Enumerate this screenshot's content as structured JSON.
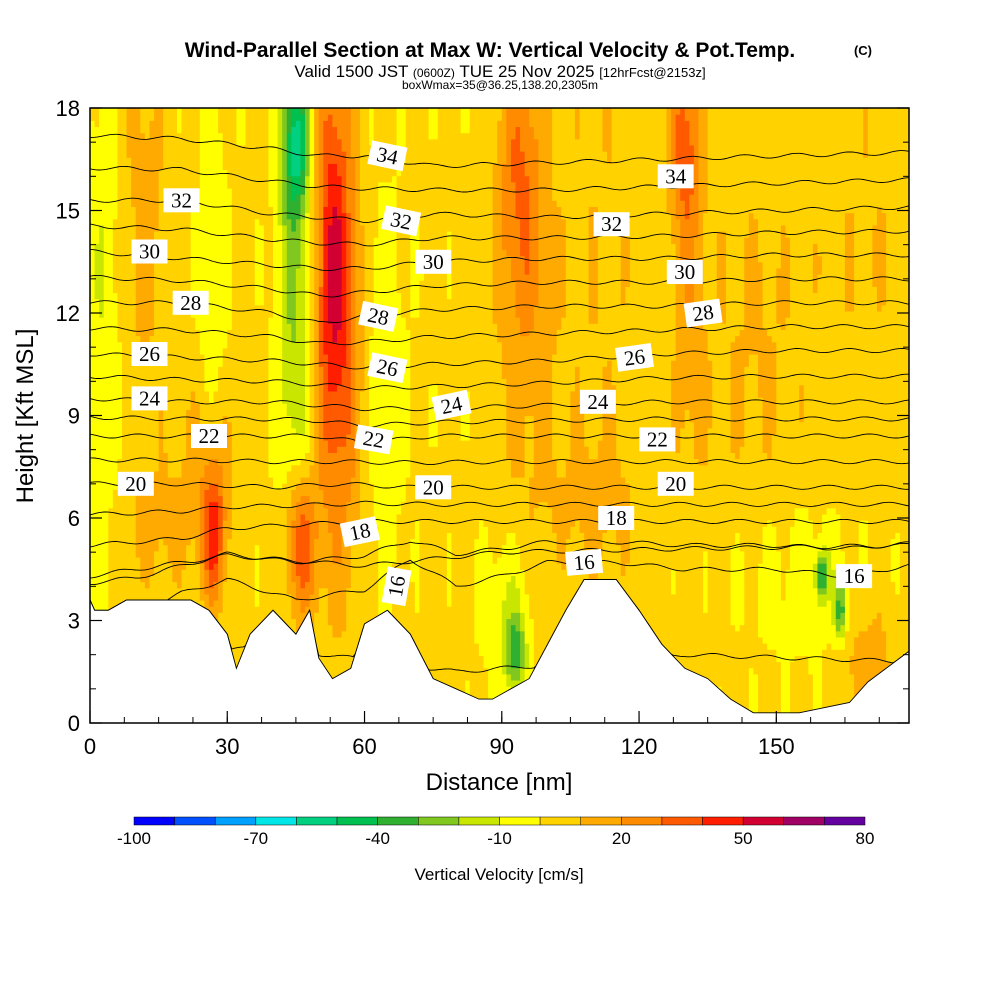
{
  "chart_data": {
    "type": "heatmap",
    "title": "Wind-Parallel Section at Max W: Vertical Velocity & Pot.Temp.",
    "title_mark": "(C)",
    "subtitle_prefix": "Valid 1500 JST",
    "subtitle_z": "(0600Z)",
    "subtitle_date": "TUE 25 Nov 2025",
    "subtitle_fcst": "[12hrFcst@2153z]",
    "subtitle2": "boxWmax=35@36.25,138.20,2305m",
    "xlabel": "Distance [nm]",
    "ylabel": "Height [Kft MSL]",
    "xlim": [
      0,
      179
    ],
    "ylim": [
      0,
      18
    ],
    "x_ticks": [
      0,
      30,
      60,
      90,
      120,
      150
    ],
    "y_ticks": [
      0,
      3,
      6,
      9,
      12,
      15,
      18
    ],
    "colorbar": {
      "label": "Vertical Velocity [cm/s]",
      "tick_values": [
        -100,
        -70,
        -40,
        -10,
        20,
        50,
        80
      ],
      "boundaries": [
        -100,
        -90,
        -80,
        -70,
        -60,
        -50,
        -40,
        -30,
        -20,
        -10,
        0,
        10,
        20,
        30,
        40,
        50,
        60,
        70,
        80
      ],
      "colors": [
        "#0000ff",
        "#0050ff",
        "#00a0ff",
        "#00e6e6",
        "#00d080",
        "#00c050",
        "#30b030",
        "#80c820",
        "#c8e600",
        "#ffff00",
        "#ffd200",
        "#ffaa00",
        "#ff8c00",
        "#ff5a00",
        "#ff1e00",
        "#d20032",
        "#a00064",
        "#6400a0"
      ]
    },
    "terrain_kft": [
      [
        0,
        3.6
      ],
      [
        1,
        3.3
      ],
      [
        4,
        3.3
      ],
      [
        8,
        3.6
      ],
      [
        22,
        3.6
      ],
      [
        26,
        3.3
      ],
      [
        30,
        2.6
      ],
      [
        32,
        1.6
      ],
      [
        35,
        2.6
      ],
      [
        40,
        3.3
      ],
      [
        45,
        2.6
      ],
      [
        48,
        3.3
      ],
      [
        50,
        1.9
      ],
      [
        53,
        1.3
      ],
      [
        57,
        1.6
      ],
      [
        60,
        2.9
      ],
      [
        65,
        3.3
      ],
      [
        70,
        2.6
      ],
      [
        75,
        1.3
      ],
      [
        80,
        1.0
      ],
      [
        85,
        0.7
      ],
      [
        88,
        0.7
      ],
      [
        92,
        1.0
      ],
      [
        96,
        1.3
      ],
      [
        100,
        2.3
      ],
      [
        104,
        3.3
      ],
      [
        108,
        4.2
      ],
      [
        115,
        4.2
      ],
      [
        120,
        3.3
      ],
      [
        125,
        2.3
      ],
      [
        130,
        1.6
      ],
      [
        135,
        1.3
      ],
      [
        140,
        0.7
      ],
      [
        145,
        0.3
      ],
      [
        155,
        0.3
      ],
      [
        166,
        0.6
      ],
      [
        170,
        1.2
      ],
      [
        179,
        2.1
      ]
    ],
    "series": [
      {
        "name": "16",
        "values": [
          [
            0,
            3.0
          ],
          [
            10,
            3.2
          ],
          [
            20,
            3.8
          ],
          [
            30,
            4.2
          ],
          [
            45,
            3.6
          ],
          [
            60,
            3.9
          ],
          [
            70,
            4.8
          ],
          [
            80,
            4.0
          ],
          [
            90,
            4.3
          ],
          [
            100,
            4.7
          ],
          [
            115,
            4.7
          ],
          [
            130,
            4.5
          ],
          [
            150,
            4.5
          ],
          [
            165,
            4.3
          ],
          [
            179,
            4.6
          ]
        ]
      },
      {
        "name": "18",
        "values": [
          [
            0,
            5.2
          ],
          [
            10,
            5.3
          ],
          [
            20,
            5.4
          ],
          [
            30,
            5.7
          ],
          [
            45,
            5.8
          ],
          [
            60,
            5.9
          ],
          [
            75,
            5.9
          ],
          [
            90,
            5.9
          ],
          [
            110,
            5.9
          ],
          [
            130,
            5.9
          ],
          [
            150,
            5.9
          ],
          [
            179,
            5.9
          ]
        ]
      },
      {
        "name": "20",
        "values": [
          [
            0,
            7.0
          ],
          [
            20,
            7.0
          ],
          [
            40,
            6.9
          ],
          [
            55,
            7.0
          ],
          [
            70,
            6.9
          ],
          [
            90,
            6.9
          ],
          [
            110,
            6.9
          ],
          [
            130,
            6.9
          ],
          [
            150,
            6.9
          ],
          [
            179,
            6.9
          ]
        ]
      },
      {
        "name": "22",
        "values": [
          [
            0,
            8.4
          ],
          [
            20,
            8.4
          ],
          [
            40,
            8.4
          ],
          [
            50,
            8.4
          ],
          [
            60,
            8.2
          ],
          [
            75,
            8.4
          ],
          [
            100,
            8.4
          ],
          [
            125,
            8.4
          ],
          [
            150,
            8.4
          ],
          [
            179,
            8.4
          ]
        ]
      },
      {
        "name": "24",
        "values": [
          [
            0,
            9.5
          ],
          [
            20,
            9.4
          ],
          [
            40,
            9.4
          ],
          [
            50,
            9.3
          ],
          [
            60,
            9.2
          ],
          [
            75,
            9.2
          ],
          [
            100,
            9.3
          ],
          [
            125,
            9.4
          ],
          [
            150,
            9.4
          ],
          [
            179,
            9.4
          ]
        ]
      },
      {
        "name": "26",
        "values": [
          [
            0,
            10.8
          ],
          [
            20,
            10.7
          ],
          [
            40,
            10.6
          ],
          [
            50,
            10.5
          ],
          [
            60,
            10.4
          ],
          [
            75,
            10.5
          ],
          [
            100,
            10.6
          ],
          [
            125,
            10.8
          ],
          [
            150,
            10.9
          ],
          [
            179,
            10.9
          ]
        ]
      },
      {
        "name": "28",
        "values": [
          [
            0,
            12.3
          ],
          [
            20,
            12.3
          ],
          [
            40,
            12.0
          ],
          [
            50,
            11.7
          ],
          [
            60,
            11.9
          ],
          [
            75,
            12.1
          ],
          [
            100,
            12.2
          ],
          [
            125,
            12.2
          ],
          [
            150,
            12.3
          ],
          [
            179,
            12.3
          ]
        ]
      },
      {
        "name": "30",
        "values": [
          [
            0,
            13.8
          ],
          [
            20,
            13.6
          ],
          [
            40,
            13.4
          ],
          [
            50,
            13.3
          ],
          [
            60,
            13.3
          ],
          [
            75,
            13.5
          ],
          [
            100,
            13.6
          ],
          [
            125,
            13.6
          ],
          [
            150,
            13.7
          ],
          [
            179,
            13.7
          ]
        ]
      },
      {
        "name": "32",
        "values": [
          [
            0,
            15.3
          ],
          [
            20,
            15.3
          ],
          [
            40,
            14.9
          ],
          [
            50,
            14.8
          ],
          [
            60,
            14.7
          ],
          [
            75,
            14.9
          ],
          [
            100,
            14.8
          ],
          [
            125,
            14.9
          ],
          [
            150,
            15.0
          ],
          [
            179,
            15.1
          ]
        ]
      },
      {
        "name": "34",
        "values": [
          [
            0,
            17.2
          ],
          [
            20,
            17.1
          ],
          [
            40,
            16.8
          ],
          [
            50,
            16.6
          ],
          [
            60,
            16.6
          ],
          [
            75,
            16.3
          ],
          [
            100,
            16.4
          ],
          [
            125,
            16.5
          ],
          [
            150,
            16.6
          ],
          [
            179,
            16.7
          ]
        ]
      }
    ],
    "contour_labels": [
      {
        "text": "32",
        "x": 20,
        "y": 15.3,
        "rot": 0
      },
      {
        "text": "30",
        "x": 13,
        "y": 13.8,
        "rot": 0
      },
      {
        "text": "28",
        "x": 22,
        "y": 12.3,
        "rot": 0
      },
      {
        "text": "26",
        "x": 13,
        "y": 10.8,
        "rot": 0
      },
      {
        "text": "24",
        "x": 13,
        "y": 9.5,
        "rot": 0
      },
      {
        "text": "22",
        "x": 26,
        "y": 8.4,
        "rot": 0
      },
      {
        "text": "20",
        "x": 10,
        "y": 7.0,
        "rot": 0
      },
      {
        "text": "34",
        "x": 65,
        "y": 16.6,
        "rot": 12
      },
      {
        "text": "32",
        "x": 68,
        "y": 14.7,
        "rot": 12
      },
      {
        "text": "30",
        "x": 75,
        "y": 13.5,
        "rot": 0
      },
      {
        "text": "28",
        "x": 63,
        "y": 11.9,
        "rot": 12
      },
      {
        "text": "26",
        "x": 65,
        "y": 10.4,
        "rot": 12
      },
      {
        "text": "24",
        "x": 79,
        "y": 9.3,
        "rot": -12
      },
      {
        "text": "22",
        "x": 62,
        "y": 8.3,
        "rot": 10
      },
      {
        "text": "20",
        "x": 75,
        "y": 6.9,
        "rot": 0
      },
      {
        "text": "18",
        "x": 59,
        "y": 5.6,
        "rot": -12
      },
      {
        "text": "16",
        "x": 67,
        "y": 4.0,
        "rot": -80
      },
      {
        "text": "34",
        "x": 128,
        "y": 16.0,
        "rot": 0
      },
      {
        "text": "32",
        "x": 114,
        "y": 14.6,
        "rot": 0
      },
      {
        "text": "30",
        "x": 130,
        "y": 13.2,
        "rot": 0
      },
      {
        "text": "28",
        "x": 134,
        "y": 12.0,
        "rot": -8
      },
      {
        "text": "26",
        "x": 119,
        "y": 10.7,
        "rot": -8
      },
      {
        "text": "24",
        "x": 111,
        "y": 9.4,
        "rot": 0
      },
      {
        "text": "22",
        "x": 124,
        "y": 8.3,
        "rot": 0
      },
      {
        "text": "20",
        "x": 128,
        "y": 7.0,
        "rot": 0
      },
      {
        "text": "18",
        "x": 115,
        "y": 6.0,
        "rot": 0
      },
      {
        "text": "16",
        "x": 108,
        "y": 4.7,
        "rot": -5
      },
      {
        "text": "16",
        "x": 167,
        "y": 4.3,
        "rot": 0
      }
    ],
    "velocity_features": [
      {
        "x": 3,
        "y": 12,
        "sx": 2.5,
        "sy": 6,
        "v": -12
      },
      {
        "x": 12,
        "y": 15,
        "sx": 3,
        "sy": 4,
        "v": 12
      },
      {
        "x": 27,
        "y": 12,
        "sx": 2.5,
        "sy": 5,
        "v": -10
      },
      {
        "x": 45,
        "y": 12,
        "sx": 3,
        "sy": 5.5,
        "v": -25
      },
      {
        "x": 45,
        "y": 17,
        "sx": 2,
        "sy": 1.5,
        "v": -45
      },
      {
        "x": 53,
        "y": 14,
        "sx": 3,
        "sy": 4,
        "v": 40
      },
      {
        "x": 55,
        "y": 9.5,
        "sx": 4,
        "sy": 4.5,
        "v": 20
      },
      {
        "x": 64,
        "y": 10,
        "sx": 3.5,
        "sy": 4,
        "v": -12
      },
      {
        "x": 27,
        "y": 5.5,
        "sx": 1.8,
        "sy": 1.5,
        "v": 40
      },
      {
        "x": 46,
        "y": 5.2,
        "sx": 2.5,
        "sy": 1.6,
        "v": 42
      },
      {
        "x": 26,
        "y": 7.5,
        "sx": 5,
        "sy": 2,
        "v": 12
      },
      {
        "x": 94,
        "y": 16,
        "sx": 3.5,
        "sy": 3,
        "v": 25
      },
      {
        "x": 96,
        "y": 11,
        "sx": 5,
        "sy": 4,
        "v": 10
      },
      {
        "x": 112,
        "y": 13,
        "sx": 6,
        "sy": 7,
        "v": 6
      },
      {
        "x": 130,
        "y": 17,
        "sx": 2.5,
        "sy": 2,
        "v": 28
      },
      {
        "x": 131,
        "y": 12,
        "sx": 2.5,
        "sy": 4,
        "v": 12
      },
      {
        "x": 155,
        "y": 4.2,
        "sx": 11,
        "sy": 1.8,
        "v": -8
      },
      {
        "x": 91,
        "y": 3.3,
        "sx": 4,
        "sy": 1.5,
        "v": -14
      },
      {
        "x": 93,
        "y": 2.0,
        "sx": 1.5,
        "sy": 0.8,
        "v": -35
      },
      {
        "x": 160,
        "y": 4.3,
        "sx": 1,
        "sy": 0.5,
        "v": -40
      },
      {
        "x": 164,
        "y": 3.3,
        "sx": 1,
        "sy": 0.6,
        "v": -38
      },
      {
        "x": 170,
        "y": 1.5,
        "sx": 4,
        "sy": 1.5,
        "v": 15
      },
      {
        "x": 145,
        "y": 11,
        "sx": 8,
        "sy": 4,
        "v": 8
      },
      {
        "x": 170,
        "y": 14,
        "sx": 8,
        "sy": 4,
        "v": 6
      },
      {
        "x": 14,
        "y": 5.8,
        "sx": 6,
        "sy": 1.2,
        "v": 10
      },
      {
        "x": 110,
        "y": 6.5,
        "sx": 8,
        "sy": 1.2,
        "v": 8
      }
    ]
  }
}
